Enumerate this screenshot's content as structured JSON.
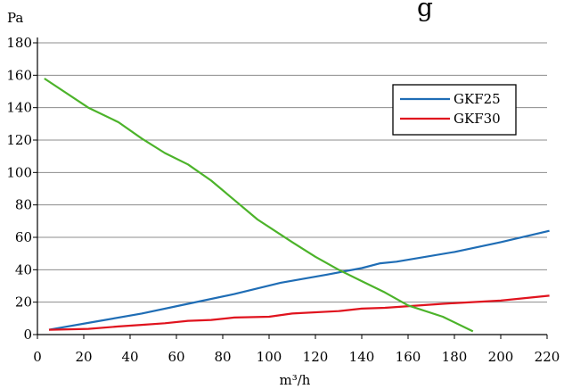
{
  "chart_data": {
    "type": "line",
    "title": "",
    "title_fragment": "g",
    "xlabel": "m³/h",
    "ylabel": "Pa",
    "xlim": [
      0,
      220
    ],
    "ylim": [
      0,
      180
    ],
    "x_ticks": [
      "0",
      "20",
      "40",
      "60",
      "80",
      "100",
      "120",
      "140",
      "160",
      "180",
      "200",
      "220"
    ],
    "y_ticks": [
      "0",
      "20",
      "40",
      "60",
      "80",
      "100",
      "120",
      "140",
      "160",
      "180"
    ],
    "grid": "horizontal",
    "legend_position": "top-right",
    "series": [
      {
        "name": "GKF25",
        "color": "#1f6db5",
        "points": [
          [
            5,
            3
          ],
          [
            25,
            8
          ],
          [
            45,
            13
          ],
          [
            65,
            19
          ],
          [
            85,
            25
          ],
          [
            105,
            32
          ],
          [
            125,
            37
          ],
          [
            140,
            41
          ],
          [
            148,
            44
          ],
          [
            155,
            45
          ],
          [
            180,
            51
          ],
          [
            200,
            57
          ],
          [
            221,
            64
          ]
        ]
      },
      {
        "name": "GKF30",
        "color": "#e0131e",
        "points": [
          [
            5,
            3
          ],
          [
            22,
            3.5
          ],
          [
            35,
            5
          ],
          [
            45,
            6
          ],
          [
            55,
            7
          ],
          [
            65,
            8.5
          ],
          [
            75,
            9
          ],
          [
            85,
            10.5
          ],
          [
            100,
            11
          ],
          [
            110,
            13
          ],
          [
            130,
            14.5
          ],
          [
            140,
            16
          ],
          [
            150,
            16.5
          ],
          [
            175,
            19
          ],
          [
            200,
            21
          ],
          [
            221,
            24
          ]
        ]
      },
      {
        "color": "#4cb32a",
        "points": [
          [
            3,
            158
          ],
          [
            22,
            140
          ],
          [
            35,
            131
          ],
          [
            45,
            121
          ],
          [
            55,
            112
          ],
          [
            65,
            105
          ],
          [
            75,
            95
          ],
          [
            85,
            83
          ],
          [
            95,
            71
          ],
          [
            110,
            57
          ],
          [
            120,
            48
          ],
          [
            130,
            40
          ],
          [
            140,
            33
          ],
          [
            150,
            26
          ],
          [
            160,
            18
          ],
          [
            175,
            11
          ],
          [
            188,
            2
          ]
        ]
      }
    ]
  }
}
